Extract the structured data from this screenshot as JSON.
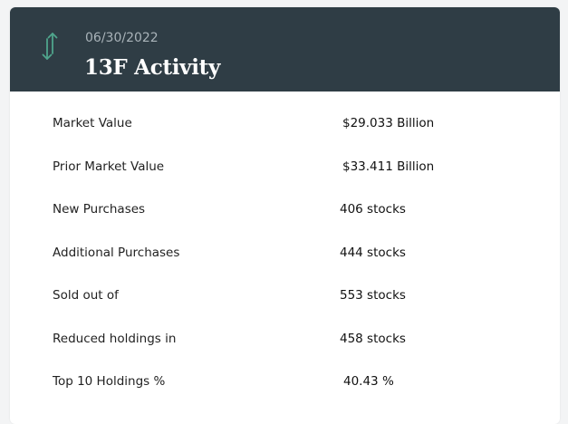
{
  "header": {
    "icon": "up-down-arrows-icon",
    "icon_color": "#4fa58c",
    "date": "06/30/2022",
    "title": "13F Activity"
  },
  "rows": [
    {
      "label": "Market Value",
      "value": "$29.033 Billion"
    },
    {
      "label": "Prior Market Value",
      "value": "$33.411 Billion"
    },
    {
      "label": "New Purchases",
      "value": "406 stocks"
    },
    {
      "label": "Additional Purchases",
      "value": "444 stocks"
    },
    {
      "label": "Sold out of",
      "value": "553 stocks"
    },
    {
      "label": "Reduced holdings in",
      "value": "458 stocks"
    },
    {
      "label": "Top 10 Holdings %",
      "value": "40.43 %"
    }
  ]
}
